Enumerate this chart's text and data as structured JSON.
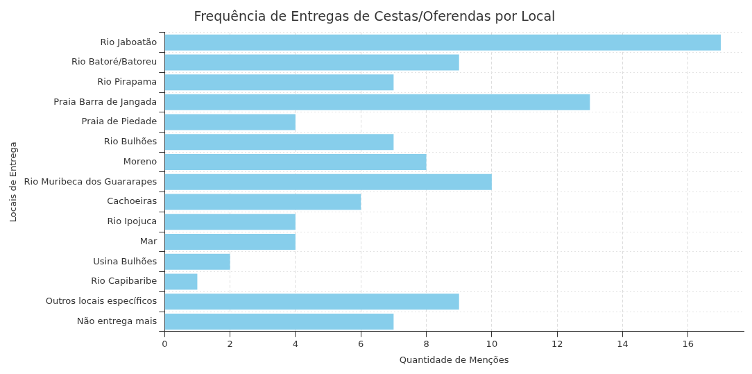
{
  "chart_data": {
    "type": "bar",
    "orientation": "horizontal",
    "title": "Frequência de Entregas de Cestas/Oferendas por Local",
    "xlabel": "Quantidade de Menções",
    "ylabel": "Locais de Entrega",
    "categories": [
      "Rio Jaboatão",
      "Rio Batoré/Batoreu",
      "Rio Pirapama",
      "Praia Barra de Jangada",
      "Praia de Piedade",
      "Rio Bulhões",
      "Moreno",
      "Rio Muribeca dos Guararapes",
      "Cachoeiras",
      "Rio Ipojuca",
      "Mar",
      "Usina Bulhões",
      "Rio Capibaribe",
      "Outros locais específicos",
      "Não entrega mais"
    ],
    "values": [
      17,
      9,
      7,
      13,
      4,
      7,
      8,
      10,
      6,
      4,
      4,
      2,
      1,
      9,
      7
    ],
    "color": "#87ceeb",
    "xlim": [
      0,
      17.7
    ],
    "xticks": [
      0,
      2,
      4,
      6,
      8,
      10,
      12,
      14,
      16
    ],
    "grid": true,
    "legend": false
  }
}
